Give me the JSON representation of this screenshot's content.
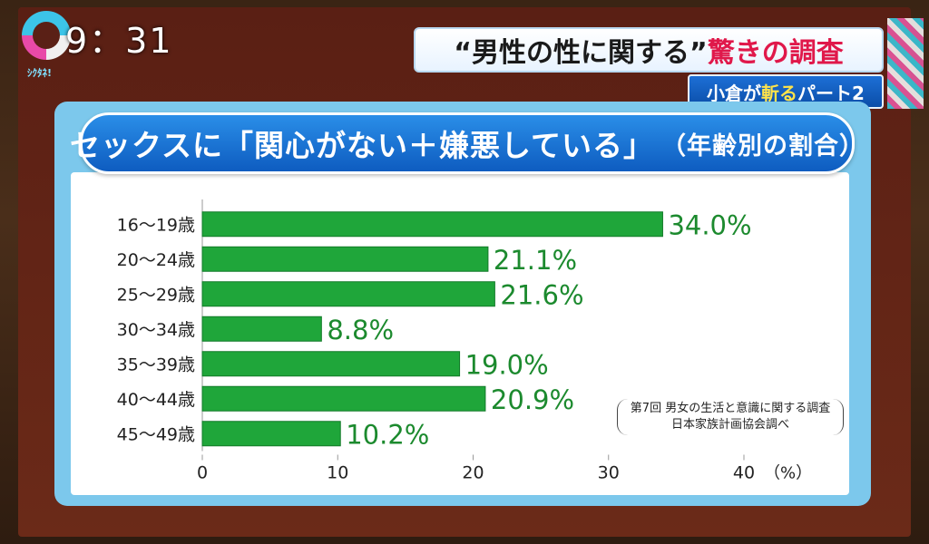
{
  "overlay": {
    "clock": "9：31",
    "brand": "ｼｸﾀﾈ!"
  },
  "header": {
    "banner_quote": "“男性の性に関する”",
    "banner_accent": "驚きの調査",
    "sub_prefix": "小倉が",
    "sub_highlight": "斬る",
    "sub_suffix": "パート2"
  },
  "chart_data": {
    "type": "bar",
    "orientation": "horizontal",
    "title": "セックスに「関心がない＋嫌悪している」",
    "subtitle": "（年齢別の割合）",
    "categories": [
      "16～19歳",
      "20～24歳",
      "25～29歳",
      "30～34歳",
      "35～39歳",
      "40～44歳",
      "45～49歳"
    ],
    "values": [
      34.0,
      21.1,
      21.6,
      8.8,
      19.0,
      20.9,
      10.2
    ],
    "value_labels": [
      "34.0%",
      "21.1%",
      "21.6%",
      "8.8%",
      "19.0%",
      "20.9%",
      "10.2%"
    ],
    "xlim": [
      0,
      40
    ],
    "xticks": [
      "0",
      "10",
      "20",
      "30",
      "40"
    ],
    "unit": "（%）",
    "bar_color": "#1fa63a",
    "label_color": "#1c8a2e",
    "grid": false
  },
  "source": {
    "line1": "第7回 男女の生活と意識に関する調査",
    "line2": "日本家族計画協会調べ"
  }
}
